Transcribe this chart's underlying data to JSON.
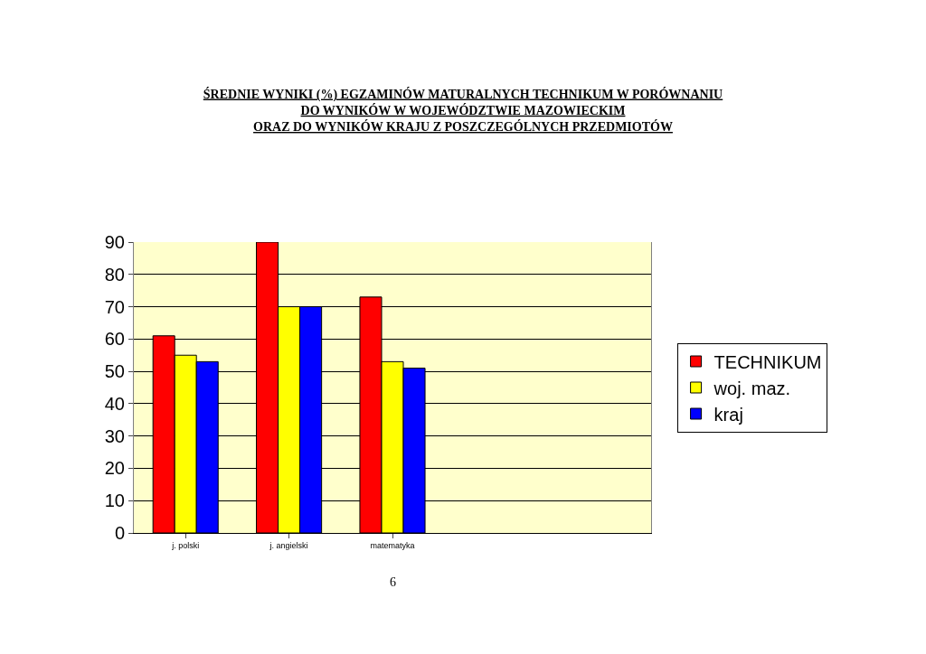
{
  "chart_data": {
    "type": "bar",
    "title": "ŚREDNIE WYNIKI (%) EGZAMINÓW MATURALNYCH TECHNIKUM W PORÓWNANIU\nDO WYNIKÓW W WOJEWÓDZTWIE MAZOWIECKIM\nORAZ DO WYNIKÓW KRAJU Z POSZCZEGÓLNYCH PRZEDMIOTÓW",
    "categories": [
      "j. polski",
      "j. angielski",
      "matematyka",
      null,
      null
    ],
    "series": [
      {
        "name": "TECHNIKUM",
        "color": "#ff0000",
        "values": [
          61,
          90,
          73,
          null,
          null
        ]
      },
      {
        "name": "woj. maz.",
        "color": "#ffff00",
        "values": [
          55,
          70,
          53,
          null,
          null
        ]
      },
      {
        "name": "kraj",
        "color": "#0000ff",
        "values": [
          53,
          70,
          51,
          null,
          null
        ]
      }
    ],
    "ylim": [
      0,
      90
    ],
    "yticks": [
      0,
      10,
      20,
      30,
      40,
      50,
      60,
      70,
      80,
      90
    ],
    "grid": "y",
    "legend": "right",
    "annotations": [
      "6"
    ]
  }
}
